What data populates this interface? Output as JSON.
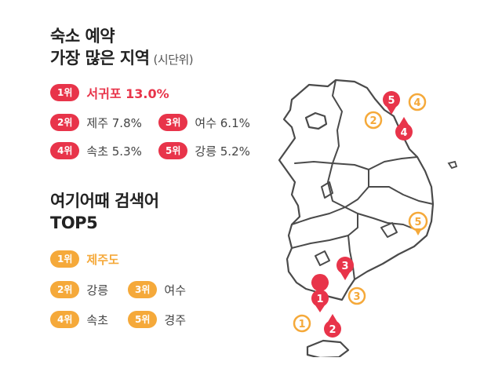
{
  "section1": {
    "title_line1": "숙소 예약",
    "title_line2": "가장 많은 지역",
    "subtitle": "(시단위)",
    "items": [
      {
        "rank": "1위",
        "text": "서귀포 13.0%"
      },
      {
        "rank": "2위",
        "text": "제주 7.8%"
      },
      {
        "rank": "3위",
        "text": "여수 6.1%"
      },
      {
        "rank": "4위",
        "text": "속초 5.3%"
      },
      {
        "rank": "5위",
        "text": "강릉 5.2%"
      }
    ]
  },
  "section2": {
    "title_line1": "여기어때 검색어",
    "title_line2": "TOP5",
    "items": [
      {
        "rank": "1위",
        "text": "제주도"
      },
      {
        "rank": "2위",
        "text": "강릉"
      },
      {
        "rank": "3위",
        "text": "여수"
      },
      {
        "rank": "4위",
        "text": "속초"
      },
      {
        "rank": "5위",
        "text": "경주"
      }
    ]
  },
  "map": {
    "red_markers": [
      "1",
      "2",
      "3",
      "4",
      "5"
    ],
    "orange_markers": [
      "1",
      "2",
      "3",
      "4",
      "5"
    ]
  },
  "colors": {
    "accent_red": "#e8344a",
    "accent_orange": "#f5a93a"
  }
}
